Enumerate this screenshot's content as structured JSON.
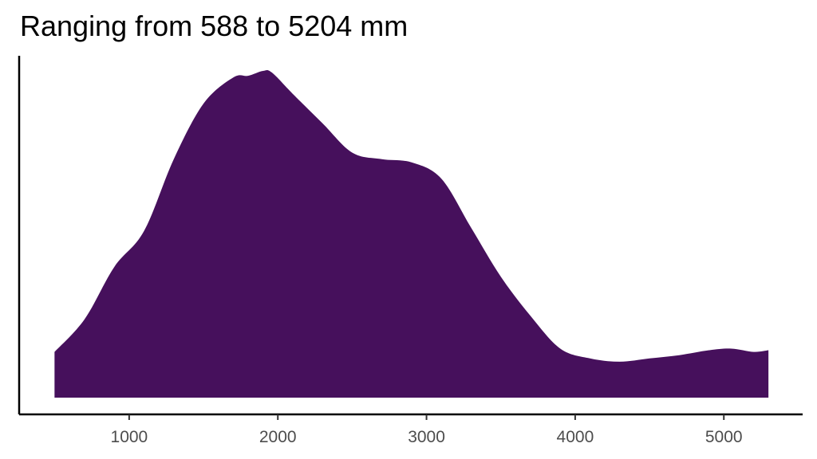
{
  "chart_data": {
    "type": "area",
    "title": "Ranging from 588 to 5204 mm",
    "xlabel": "",
    "ylabel": "",
    "xlim": [
      260,
      5530
    ],
    "ylim": [
      0,
      1
    ],
    "grid": false,
    "legend": "none",
    "fill_color": "#46105c",
    "x_ticks": [
      1000,
      2000,
      3000,
      4000,
      5000
    ],
    "x_tick_labels": [
      "1000",
      "2000",
      "3000",
      "4000",
      "5000"
    ],
    "series": [
      {
        "x": [
          498,
          700,
          900,
          1100,
          1300,
          1500,
          1700,
          1800,
          1900,
          1960,
          2100,
          2300,
          2500,
          2700,
          2900,
          3100,
          3300,
          3500,
          3700,
          3900,
          4100,
          4300,
          4500,
          4700,
          4900,
          5050,
          5200,
          5300
        ],
        "y": [
          0.14,
          0.24,
          0.4,
          0.51,
          0.73,
          0.9,
          0.98,
          0.985,
          1.0,
          0.995,
          0.93,
          0.84,
          0.75,
          0.73,
          0.72,
          0.67,
          0.52,
          0.37,
          0.25,
          0.15,
          0.12,
          0.11,
          0.12,
          0.13,
          0.145,
          0.15,
          0.14,
          0.145
        ]
      }
    ]
  }
}
